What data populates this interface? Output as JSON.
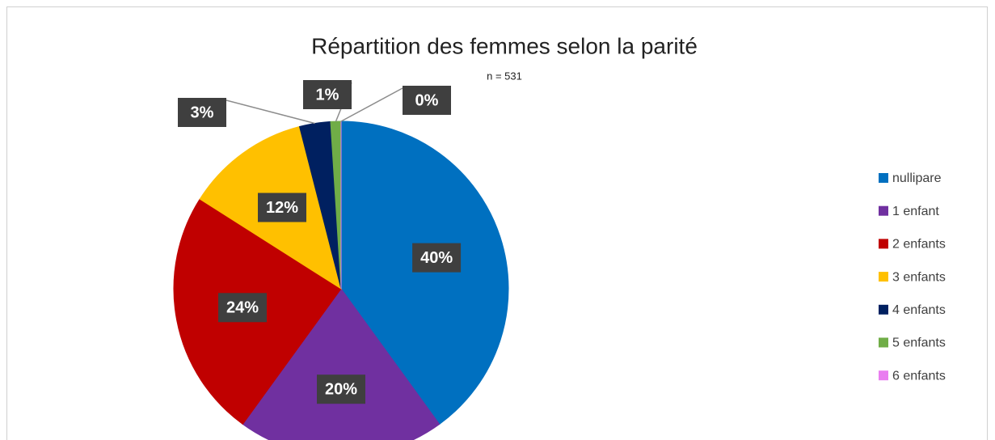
{
  "chart_data": {
    "type": "pie",
    "title": "Répartition des femmes selon la parité",
    "subtitle": "n = 531",
    "categories": [
      "nullipare",
      "1 enfant",
      "2 enfants",
      "3 enfants",
      "4 enfants",
      "5 enfants",
      "6 enfants"
    ],
    "values": [
      40,
      20,
      24,
      12,
      3,
      1,
      0
    ],
    "value_labels": [
      "40%",
      "20%",
      "24%",
      "12%",
      "3%",
      "1%",
      "0%"
    ],
    "colors": [
      "#0070c0",
      "#7030a0",
      "#c00000",
      "#ffc000",
      "#002060",
      "#70ad47",
      "#e97ef0"
    ],
    "legend": "right"
  }
}
